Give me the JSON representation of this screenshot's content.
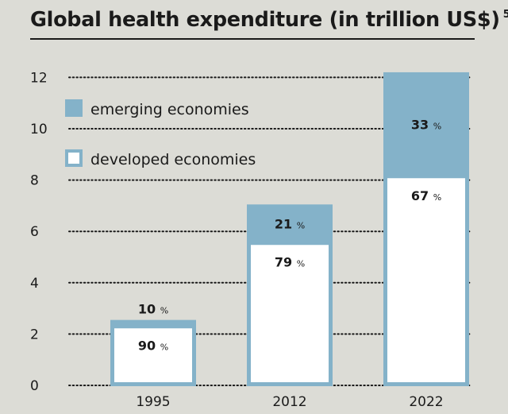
{
  "chart_data": {
    "type": "bar",
    "stacked": true,
    "title": "Global health expenditure (in trillion US$)",
    "title_note": "5)",
    "xlabel": "",
    "ylabel": "",
    "categories": [
      "1995",
      "2012",
      "2022"
    ],
    "totals": [
      2.55,
      7.05,
      12.2
    ],
    "series": [
      {
        "name": "developed economies",
        "color": "#ffffff",
        "values": [
          2.3,
          5.55,
          8.15
        ],
        "labels": [
          "90",
          "79",
          "67"
        ]
      },
      {
        "name": "emerging economies",
        "color": "#84b2c9",
        "values": [
          0.25,
          1.5,
          4.05
        ],
        "labels": [
          "10",
          "21",
          "33"
        ]
      }
    ],
    "ylim": [
      0,
      12
    ],
    "yticks": [
      0,
      2,
      4,
      6,
      8,
      10,
      12
    ],
    "grid": "dotted horizontal",
    "legend": "top-left",
    "percent_sign": "%",
    "colors": {
      "background": "#dcdcd6",
      "bar_border": "#84b2c9",
      "text": "#1a1a1a"
    }
  }
}
